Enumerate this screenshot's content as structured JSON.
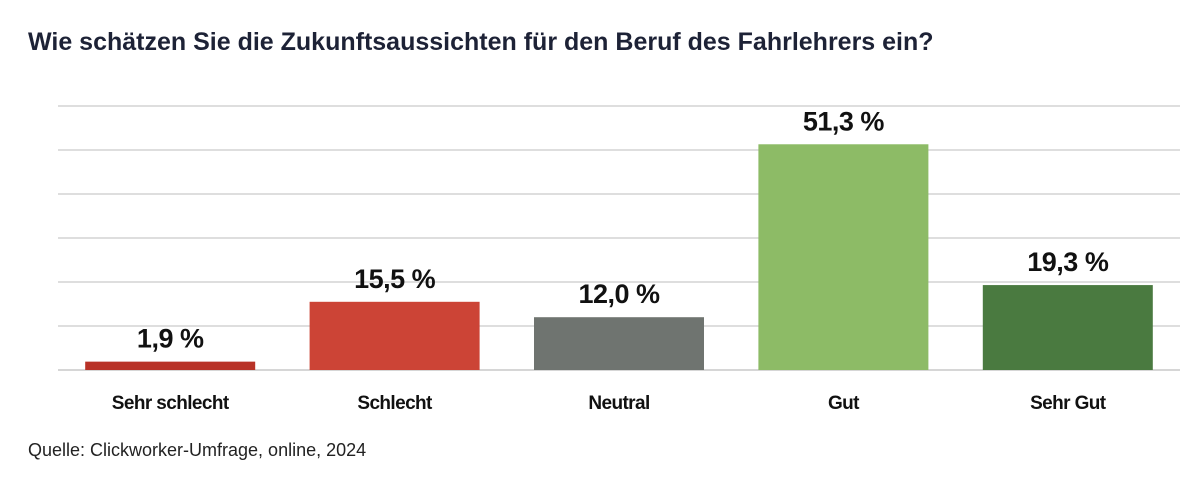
{
  "chart_data": {
    "type": "bar",
    "title": "Wie schätzen Sie die Zukunftsaussichten für den Beruf des Fahrlehrers ein?",
    "categories": [
      "Sehr schlecht",
      "Schlecht",
      "Neutral",
      "Gut",
      "Sehr Gut"
    ],
    "values": [
      1.9,
      15.5,
      12.0,
      51.3,
      19.3
    ],
    "value_labels": [
      "1,9 %",
      "15,5 %",
      "12,0 %",
      "51,3 %",
      "19,3 %"
    ],
    "colors": [
      "#b83227",
      "#cc4436",
      "#6f7470",
      "#8dbb66",
      "#4a7a40"
    ],
    "ylim": [
      0,
      60
    ],
    "grid": true,
    "legend": "none",
    "source": "Quelle: Clickworker-Umfrage, online, 2024"
  }
}
